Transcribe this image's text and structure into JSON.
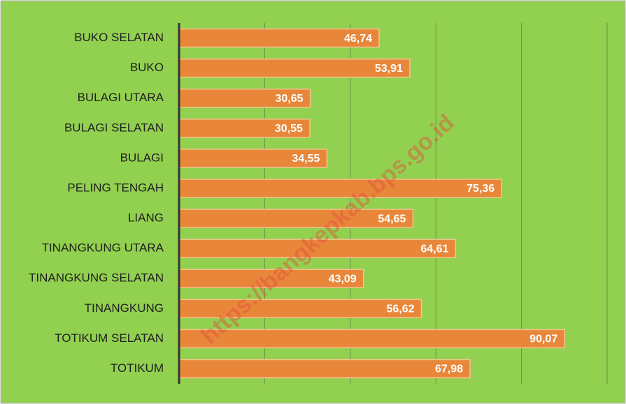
{
  "chart_data": {
    "type": "bar",
    "categories": [
      "BUKO SELATAN",
      "BUKO",
      "BULAGI UTARA",
      "BULAGI SELATAN",
      "BULAGI",
      "PELING TENGAH",
      "LIANG",
      "TINANGKUNG UTARA",
      "TINANGKUNG SELATAN",
      "TINANGKUNG",
      "TOTIKUM SELATAN",
      "TOTIKUM"
    ],
    "values": [
      46.74,
      53.91,
      30.65,
      30.55,
      34.55,
      75.36,
      54.65,
      64.61,
      43.09,
      56.62,
      90.07,
      67.98
    ],
    "value_labels": [
      "46,74",
      "53,91",
      "30,65",
      "30,55",
      "34,55",
      "75,36",
      "54,65",
      "64,61",
      "43,09",
      "56,62",
      "90,07",
      "67,98"
    ],
    "color": "#e8873a",
    "xlim": [
      0,
      100
    ],
    "xticks": [
      0,
      20,
      40,
      60,
      80,
      100
    ],
    "grid": true,
    "watermark": "https://bangkepkab.bps.go.id"
  }
}
